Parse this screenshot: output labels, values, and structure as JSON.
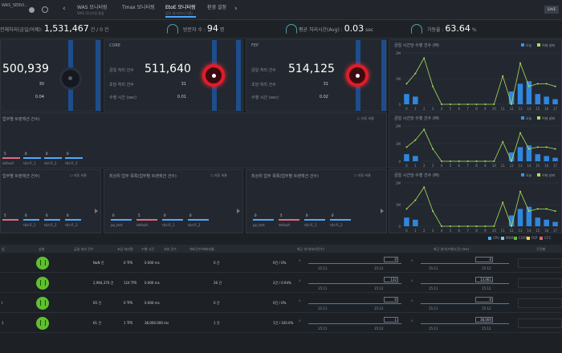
{
  "topbar": {
    "brand": "WAS_SERVI...",
    "tabs": [
      {
        "label": "WAS 모니터링",
        "sub": "WAS 모니터링 통합"
      },
      {
        "label": "Tmax 모니터링",
        "sub": ""
      },
      {
        "label": "EtoE 모니터링",
        "sub": "업무 대시보드(그룹)"
      },
      {
        "label": "환경 설정",
        "sub": ""
      }
    ],
    "user_button": "SAVE"
  },
  "kpi": {
    "total_label": "전체처리(금일/어제):",
    "total_value": "1,531,467",
    "total_suffix": "건 / 0 건",
    "visitor_label": "방문자 수 :",
    "visitor_value": "94",
    "visitor_unit": "명",
    "avg_label": "평균 처리시간(Avg) :",
    "avg_value": "0.03",
    "avg_unit": "sec",
    "avail_label": "가동율 :",
    "avail_value": "63.64",
    "avail_unit": "%"
  },
  "servers": [
    {
      "name": "",
      "count": "500,939",
      "rows": [
        {
          "label": "",
          "value": "30"
        },
        {
          "label": "",
          "value": "0.04"
        }
      ],
      "state": "ok"
    },
    {
      "name": "CORE",
      "count_label": "금일 처리 건수",
      "count": "511,640",
      "rows": [
        {
          "label": "초당 처리 건수",
          "value": "31"
        },
        {
          "label": "수행 시간 (sec)",
          "value": "0.01"
        }
      ],
      "state": "alert"
    },
    {
      "name": "FEP",
      "count_label": "금일 처리 건수",
      "count": "514,125",
      "rows": [
        {
          "label": "초당 처리 건수",
          "value": "31"
        },
        {
          "label": "수행 시간 (sec)",
          "value": "0.02"
        }
      ],
      "state": "alert"
    }
  ],
  "mid": {
    "trend_title": "업무별 트랜잭션 건수)",
    "trend_check": "자동 비율",
    "trend_bars": [
      {
        "label": "default",
        "value": "5"
      },
      {
        "label": "테스트_1",
        "value": "0"
      },
      {
        "label": "테스트_2",
        "value": "0"
      },
      {
        "label": "테스트_3",
        "value": "0"
      }
    ],
    "lower": [
      {
        "title": "업무별 트랜잭션 건수)",
        "check": "자동 비율",
        "bars": [
          {
            "label": "",
            "value": "5"
          },
          {
            "label": "테스트_1",
            "value": "0"
          },
          {
            "label": "테스트_2",
            "value": "0"
          },
          {
            "label": "테스트_3",
            "value": "0"
          }
        ]
      },
      {
        "title": "최상위 업무 목록(업무별 트랜잭션 건수)",
        "check": "자동 비율",
        "bars": [
          {
            "label": "pp_test",
            "value": "0"
          },
          {
            "label": "default",
            "value": "5"
          },
          {
            "label": "테스트_1",
            "value": "0"
          },
          {
            "label": "테스트_2",
            "value": "0"
          }
        ]
      },
      {
        "title": "최상위 업무 목록(업무별 트랜잭션 건수)",
        "check": "자동 비율",
        "bars": [
          {
            "label": "pp_test",
            "value": "0"
          },
          {
            "label": "default",
            "value": "5"
          },
          {
            "label": "테스트_1",
            "value": "0"
          },
          {
            "label": "테스트_2",
            "value": "0"
          }
        ]
      }
    ]
  },
  "charts_legend": {
    "today": "오늘",
    "yesterday": "어제 날짜"
  },
  "chart_data": [
    {
      "type": "bar",
      "title": "금일 시간당 수행 건수 (M)",
      "ylabel": "",
      "ylim": [
        0,
        2
      ],
      "yticks": [
        "0",
        "1M",
        "2M"
      ],
      "categories": [
        "0",
        "1",
        "2",
        "3",
        "4",
        "5",
        "6",
        "7",
        "8",
        "9",
        "10",
        "11",
        "12",
        "13",
        "14",
        "15",
        "16",
        "17"
      ],
      "series": [
        {
          "name": "오늘",
          "values": [
            0.4,
            0.3,
            0,
            0,
            0,
            0,
            0,
            0,
            0,
            0,
            0,
            0,
            0.5,
            0.8,
            0.9,
            0.4,
            0.3,
            0.2
          ]
        },
        {
          "name": "어제 날짜",
          "values": [
            0.8,
            1.2,
            1.8,
            0.7,
            0,
            0,
            0,
            0,
            0,
            0,
            0,
            1.1,
            0,
            1.6,
            0.7,
            0.8,
            0.8,
            0.7
          ]
        }
      ]
    },
    {
      "type": "bar",
      "title": "금일 시간당 수행 건수 (M)",
      "ylim": [
        0,
        2
      ],
      "yticks": [
        "0",
        "1M",
        "2M"
      ],
      "categories": [
        "0",
        "1",
        "2",
        "3",
        "4",
        "5",
        "6",
        "7",
        "8",
        "9",
        "10",
        "11",
        "12",
        "13",
        "14",
        "15",
        "16",
        "17"
      ],
      "series": [
        {
          "name": "오늘",
          "values": [
            0.4,
            0.3,
            0,
            0,
            0,
            0,
            0,
            0,
            0,
            0,
            0,
            0,
            0.5,
            0.8,
            0.9,
            0.4,
            0.3,
            0.2
          ]
        },
        {
          "name": "어제 날짜",
          "values": [
            0.8,
            1.2,
            1.8,
            0.7,
            0,
            0,
            0,
            0,
            0,
            0,
            0,
            1.1,
            0,
            1.6,
            0.7,
            0.8,
            0.8,
            0.7
          ]
        }
      ]
    },
    {
      "type": "bar",
      "title": "금일 시간당 수행 건수 (M)",
      "ylim": [
        0,
        2
      ],
      "yticks": [
        "0",
        "1M",
        "2M"
      ],
      "categories": [
        "0",
        "1",
        "2",
        "3",
        "4",
        "5",
        "6",
        "7",
        "8",
        "9",
        "10",
        "11",
        "12",
        "13",
        "14",
        "15",
        "16",
        "17"
      ],
      "series": [
        {
          "name": "오늘",
          "values": [
            0.4,
            0.3,
            0,
            0,
            0,
            0,
            0,
            0,
            0,
            0,
            0,
            0,
            0.5,
            0.8,
            0.9,
            0.4,
            0.3,
            0.2
          ]
        },
        {
          "name": "어제 날짜",
          "values": [
            0.8,
            1.2,
            1.8,
            0.7,
            0,
            0,
            0,
            0,
            0,
            0,
            0,
            1.1,
            0,
            1.6,
            0.7,
            0.8,
            0.8,
            0.7
          ]
        }
      ]
    }
  ],
  "grid": {
    "legend": [
      "CPU",
      "MEM",
      "CORE",
      "FEP",
      "CCC"
    ],
    "legend_colors": [
      "#4fa8ff",
      "#7ad0f2",
      "#5fc02e",
      "#f3d34a",
      "#e06a6a"
    ],
    "headers": [
      "업",
      "상태",
      "금일 처리 건수",
      "초당 처리량",
      "수행 시간",
      "처리 건수",
      "에러건수/에러비율",
      "최근 추이(처리건수)",
      "최근 추이(수행시간) (ms)",
      "구간별"
    ],
    "rows": [
      {
        "name": "",
        "count": "NaN 건",
        "tps": "0 TPS",
        "time": "0.000 ms",
        "proc": "0 건",
        "err": "0건 / 0%",
        "s1": "0",
        "s1_left": "15:11",
        "s1_right": "15:12",
        "s2": "0",
        "s2_left": "15:11",
        "s2_right": "15:12",
        "band": [
          "#1b1f24"
        ]
      },
      {
        "name": "",
        "count": "2,964,376 건",
        "tps": "124 TPS",
        "time": "0.000 ms",
        "proc": "26 건",
        "err": "2건 / 0.94%",
        "s1": "132",
        "s1_left": "15:11",
        "s1_right": "15:12",
        "s2": "13,061",
        "s2_left": "15:11",
        "s2_right": "15:12",
        "band": [
          "#4fa8ff",
          "#5fc02e",
          "#f3d34a",
          "#e06a6a"
        ]
      },
      {
        "name": "I",
        "count": "65 건",
        "tps": "0 TPS",
        "time": "0.000 ms",
        "proc": "0 건",
        "err": "0건 / 0%",
        "s1": "0",
        "s1_left": "15:11",
        "s1_right": "15:12",
        "s2": "0",
        "s2_left": "15:11",
        "s2_right": "15:12",
        "band": [
          "#1b1f24"
        ]
      },
      {
        "name": "1",
        "count": "61 건",
        "tps": "1 TPS",
        "time": "38,000.000 ms",
        "proc": "1 건",
        "err": "1건 / 100.0%",
        "s1": "1",
        "s1_left": "15:11",
        "s1_right": "15:12",
        "s2": "38,000",
        "s2_left": "15:11",
        "s2_right": "15:12",
        "band": [
          "#f07a84"
        ]
      }
    ]
  }
}
